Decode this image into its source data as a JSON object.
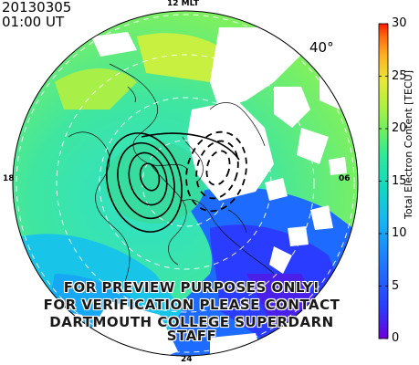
{
  "header": {
    "date": "20130305",
    "time": "01:00 UT",
    "latitude_label": "40°"
  },
  "mlt_labels": {
    "top": "12 MLT",
    "left": "18",
    "right": "06",
    "bottom": "24"
  },
  "colorbar": {
    "label": "Total Electron Content [TECU]",
    "min": 0,
    "max": 30,
    "ticks": [
      "0",
      "5",
      "10",
      "15",
      "20",
      "25",
      "30"
    ],
    "tick_values": [
      0,
      5,
      10,
      15,
      20,
      25,
      30
    ],
    "colors": [
      "#6a00d8",
      "#2a3cff",
      "#1e7cff",
      "#16b8f0",
      "#12d8c0",
      "#2ee89a",
      "#6cf060",
      "#b0f040",
      "#e8e838",
      "#ffb020",
      "#ff6a10",
      "#ff1a00"
    ]
  },
  "watermark": {
    "line1": "FOR PREVIEW PURPOSES ONLY!",
    "line2": "FOR VERIFICATION PLEASE CONTACT",
    "line3": "DARTMOUTH COLLEGE SUPERDARN STAFF"
  }
}
